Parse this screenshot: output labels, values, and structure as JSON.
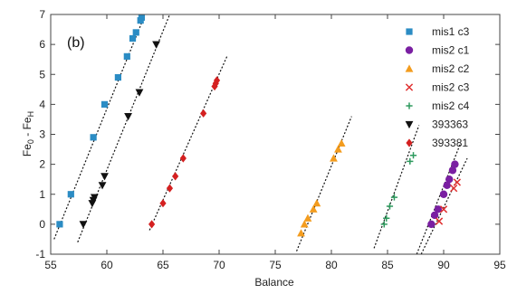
{
  "chart_data": {
    "type": "scatter",
    "panel_label": "(b)",
    "xlabel": "Balance",
    "ylabel_main": "Fe",
    "ylabel_sub1": "0",
    "ylabel_mid": " - Fe",
    "ylabel_sub2": "H",
    "xlim": [
      55,
      95
    ],
    "ylim": [
      -1,
      7
    ],
    "xticks": [
      55,
      60,
      65,
      70,
      75,
      80,
      85,
      90,
      95
    ],
    "yticks": [
      -1,
      0,
      1,
      2,
      3,
      4,
      5,
      6,
      7
    ],
    "grid": false,
    "legend_position": "top-right",
    "series": [
      {
        "name": "mis1 c3",
        "color": "#2b8cc4",
        "marker": "square",
        "points": [
          [
            55.8,
            0.0
          ],
          [
            56.8,
            1.0
          ],
          [
            58.8,
            2.9
          ],
          [
            59.8,
            4.0
          ],
          [
            61.0,
            4.9
          ],
          [
            61.8,
            5.6
          ],
          [
            62.3,
            6.2
          ],
          [
            62.6,
            6.4
          ],
          [
            63.0,
            6.8
          ],
          [
            63.1,
            6.9
          ]
        ],
        "fit": [
          [
            55.3,
            -0.5
          ],
          [
            63.4,
            7.0
          ]
        ]
      },
      {
        "name": "mis2 c1",
        "color": "#7a1fa2",
        "marker": "circle",
        "points": [
          [
            88.9,
            0.0
          ],
          [
            89.2,
            0.3
          ],
          [
            89.5,
            0.5
          ],
          [
            90.0,
            1.0
          ],
          [
            90.3,
            1.3
          ],
          [
            90.5,
            1.5
          ],
          [
            90.8,
            1.8
          ],
          [
            91.0,
            2.0
          ]
        ],
        "fit": [
          [
            87.6,
            -1.0
          ],
          [
            91.5,
            2.7
          ]
        ]
      },
      {
        "name": "mis2 c2",
        "color": "#f39c1e",
        "marker": "triangle",
        "points": [
          [
            77.3,
            -0.3
          ],
          [
            77.6,
            0.0
          ],
          [
            77.9,
            0.2
          ],
          [
            78.4,
            0.5
          ],
          [
            78.7,
            0.7
          ],
          [
            80.2,
            2.2
          ],
          [
            80.6,
            2.5
          ],
          [
            80.9,
            2.7
          ]
        ],
        "fit": [
          [
            76.9,
            -0.9
          ],
          [
            81.8,
            3.6
          ]
        ]
      },
      {
        "name": "mis2 c3",
        "color": "#e03030",
        "marker": "x",
        "points": [
          [
            89.6,
            0.1
          ],
          [
            90.0,
            0.5
          ],
          [
            90.9,
            1.2
          ],
          [
            91.2,
            1.4
          ]
        ],
        "fit": [
          [
            88.0,
            -1.0
          ],
          [
            92.1,
            2.2
          ]
        ]
      },
      {
        "name": "mis2 c4",
        "color": "#2e9a5e",
        "marker": "plus",
        "points": [
          [
            84.7,
            0.0
          ],
          [
            84.9,
            0.2
          ],
          [
            85.2,
            0.6
          ],
          [
            85.6,
            0.9
          ],
          [
            87.0,
            2.1
          ],
          [
            87.3,
            2.3
          ]
        ],
        "fit": [
          [
            83.8,
            -0.8
          ],
          [
            87.8,
            3.3
          ]
        ]
      },
      {
        "name": "393363",
        "color": "#111111",
        "marker": "triangle-down",
        "points": [
          [
            57.9,
            0.0
          ],
          [
            58.7,
            0.7
          ],
          [
            58.8,
            0.8
          ],
          [
            58.9,
            0.9
          ],
          [
            59.6,
            1.3
          ],
          [
            59.8,
            1.6
          ],
          [
            61.9,
            3.6
          ],
          [
            62.9,
            4.4
          ],
          [
            64.4,
            6.0
          ]
        ],
        "fit": [
          [
            57.4,
            -0.6
          ],
          [
            65.6,
            7.0
          ]
        ]
      },
      {
        "name": "393381",
        "color": "#d42020",
        "marker": "diamond",
        "points": [
          [
            64.0,
            0.0
          ],
          [
            65.0,
            0.7
          ],
          [
            65.6,
            1.2
          ],
          [
            66.1,
            1.6
          ],
          [
            66.8,
            2.2
          ],
          [
            68.6,
            3.7
          ],
          [
            69.6,
            4.6
          ],
          [
            69.7,
            4.7
          ],
          [
            69.8,
            4.8
          ]
        ],
        "fit": [
          [
            63.8,
            -0.2
          ],
          [
            70.7,
            5.6
          ]
        ]
      }
    ]
  }
}
